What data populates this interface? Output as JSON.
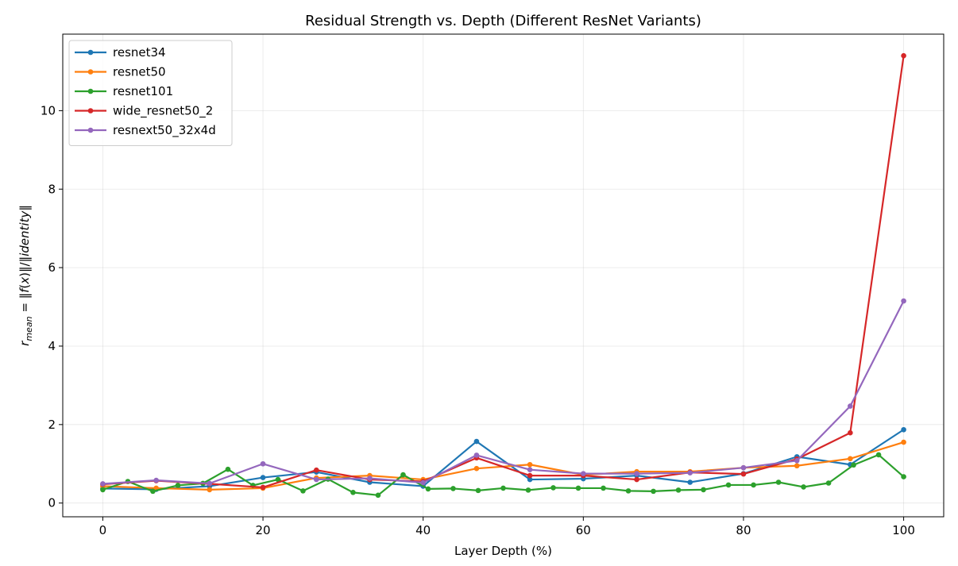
{
  "chart_data": {
    "type": "line",
    "title": "Residual Strength vs. Depth (Different ResNet Variants)",
    "xlabel": "Layer Depth (%)",
    "ylabel": "r_mean = ||f(x)||/||identity||",
    "xlim": [
      -5,
      105
    ],
    "ylim": [
      -0.35,
      11.95
    ],
    "xticks": [
      "0",
      "20",
      "40",
      "60",
      "80",
      "100"
    ],
    "yticks": [
      "0",
      "2",
      "4",
      "6",
      "8",
      "10"
    ],
    "grid": true,
    "legend_position": "top-left",
    "series": [
      {
        "name": "resnet34",
        "color": "#1f77b4",
        "x": [
          0,
          6.67,
          13.33,
          20,
          26.67,
          33.33,
          40,
          46.67,
          53.33,
          60,
          66.67,
          73.33,
          80,
          86.67,
          93.33,
          100
        ],
        "y": [
          0.37,
          0.35,
          0.43,
          0.65,
          0.79,
          0.53,
          0.43,
          1.57,
          0.6,
          0.62,
          0.7,
          0.53,
          0.75,
          1.18,
          0.98,
          1.87
        ]
      },
      {
        "name": "resnet50",
        "color": "#ff7f0e",
        "x": [
          0,
          6.67,
          13.33,
          20,
          26.67,
          33.33,
          40,
          46.67,
          53.33,
          60,
          66.67,
          73.33,
          80,
          86.67,
          93.33,
          100
        ],
        "y": [
          0.43,
          0.38,
          0.34,
          0.38,
          0.64,
          0.7,
          0.6,
          0.88,
          0.98,
          0.72,
          0.8,
          0.8,
          0.9,
          0.95,
          1.13,
          1.55
        ]
      },
      {
        "name": "resnet101",
        "color": "#2ca02c",
        "x": [
          0,
          3.125,
          6.25,
          9.375,
          12.5,
          15.625,
          18.75,
          21.875,
          25,
          28.125,
          31.25,
          34.375,
          37.5,
          40.625,
          43.75,
          46.875,
          50,
          53.125,
          56.25,
          59.375,
          62.5,
          65.625,
          68.75,
          71.875,
          75,
          78.125,
          81.25,
          84.375,
          87.5,
          90.625,
          93.75,
          96.875,
          100
        ],
        "y": [
          0.34,
          0.55,
          0.3,
          0.45,
          0.5,
          0.86,
          0.45,
          0.6,
          0.31,
          0.61,
          0.27,
          0.2,
          0.72,
          0.36,
          0.37,
          0.32,
          0.38,
          0.33,
          0.39,
          0.38,
          0.38,
          0.31,
          0.3,
          0.33,
          0.34,
          0.46,
          0.46,
          0.53,
          0.41,
          0.51,
          0.97,
          1.23,
          0.67
        ]
      },
      {
        "name": "wide_resnet50_2",
        "color": "#d62728",
        "x": [
          0,
          6.67,
          13.33,
          20,
          26.67,
          33.33,
          40,
          46.67,
          53.33,
          60,
          66.67,
          73.33,
          80,
          86.67,
          93.33,
          100
        ],
        "y": [
          0.48,
          0.57,
          0.49,
          0.4,
          0.84,
          0.6,
          0.55,
          1.15,
          0.7,
          0.7,
          0.6,
          0.78,
          0.74,
          1.12,
          1.79,
          11.4
        ]
      },
      {
        "name": "resnext50_32x4d",
        "color": "#9467bd",
        "x": [
          0,
          6.67,
          13.33,
          20,
          26.67,
          33.33,
          40,
          46.67,
          53.33,
          60,
          66.67,
          73.33,
          80,
          86.67,
          93.33,
          100
        ],
        "y": [
          0.49,
          0.58,
          0.5,
          1.0,
          0.6,
          0.63,
          0.52,
          1.22,
          0.85,
          0.75,
          0.75,
          0.77,
          0.9,
          1.08,
          2.47,
          5.15
        ]
      }
    ]
  }
}
